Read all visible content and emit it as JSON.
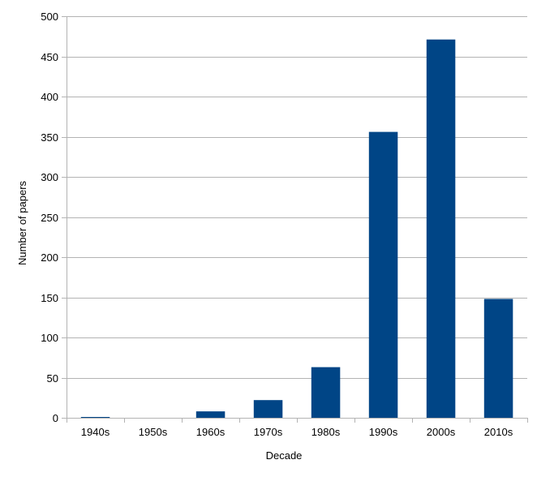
{
  "chart_data": {
    "type": "bar",
    "title": "",
    "xlabel": "Decade",
    "ylabel": "Number of papers",
    "categories": [
      "1940s",
      "1950s",
      "1960s",
      "1970s",
      "1980s",
      "1990s",
      "2000s",
      "2010s"
    ],
    "values": [
      1,
      0,
      8,
      22,
      63,
      356,
      471,
      148
    ],
    "ylim": [
      0,
      500
    ],
    "yticks": [
      0,
      50,
      100,
      150,
      200,
      250,
      300,
      350,
      400,
      450,
      500
    ],
    "grid": "horizontal",
    "legend": "none",
    "bar_color": "#004586",
    "grid_color": "#b3b3b3"
  }
}
